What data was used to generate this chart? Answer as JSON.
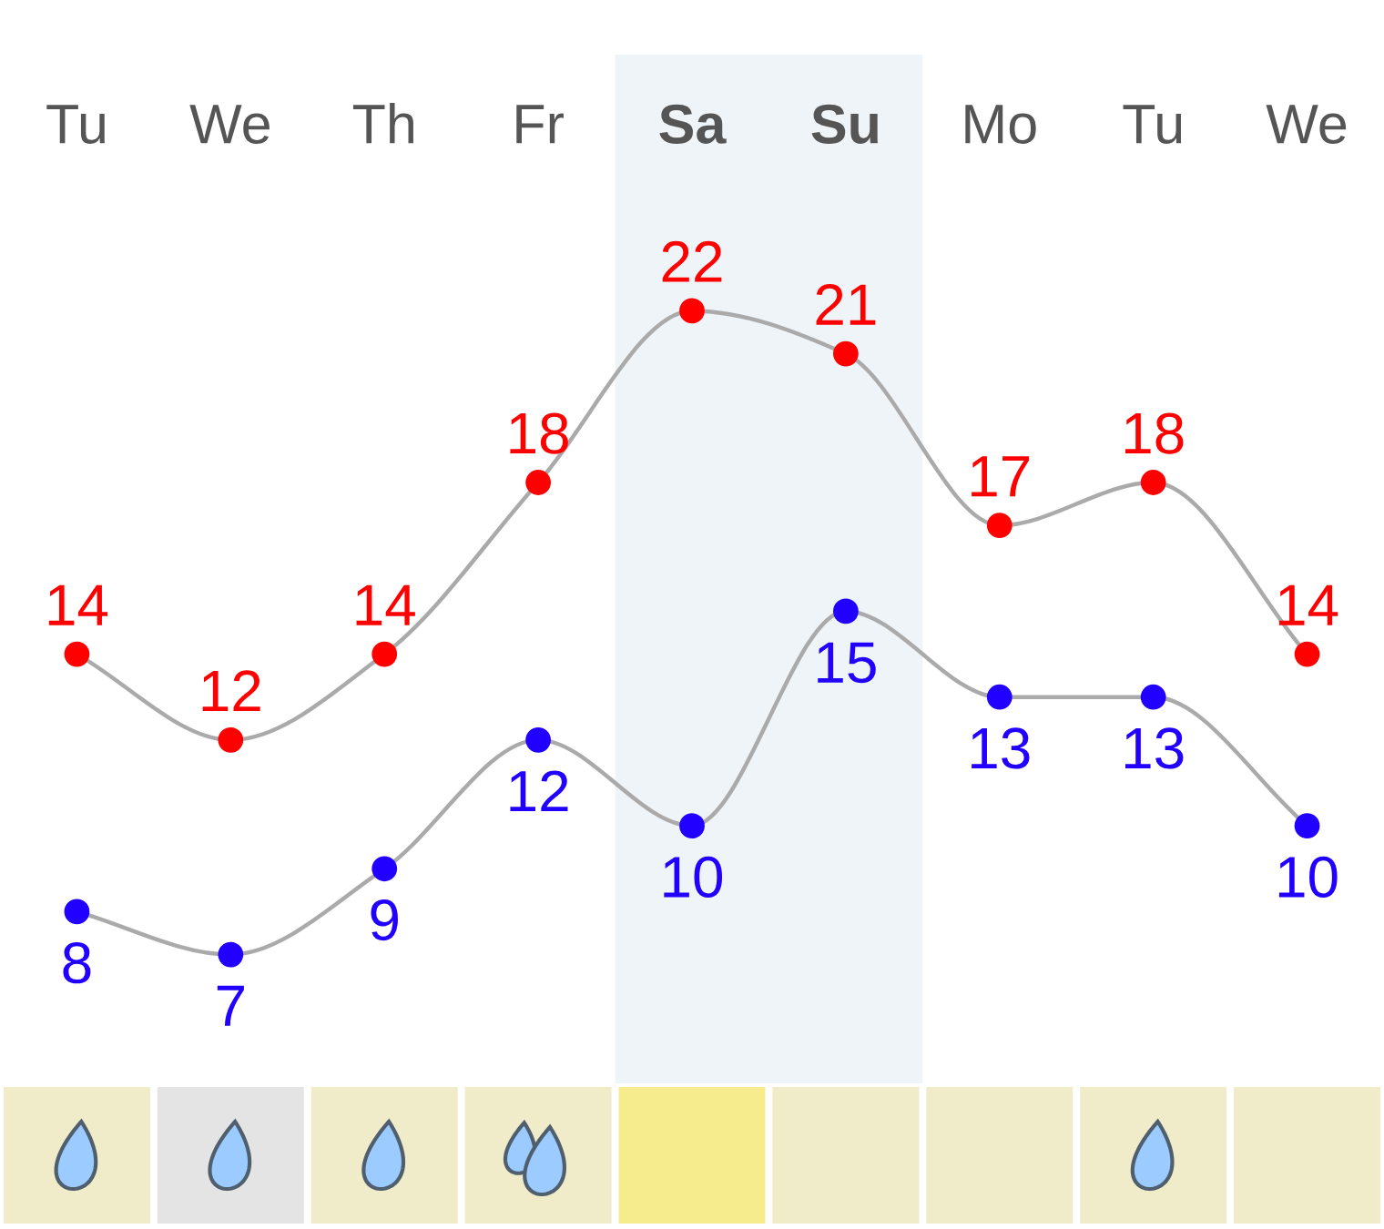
{
  "chart_data": {
    "type": "line",
    "categories": [
      "Tu",
      "We",
      "Th",
      "Fr",
      "Sa",
      "Su",
      "Mo",
      "Tu",
      "We"
    ],
    "series": [
      {
        "color": "#ff0000",
        "values": [
          14,
          12,
          14,
          18,
          22,
          21,
          17,
          18,
          14
        ]
      },
      {
        "color": "#2200ff",
        "values": [
          8,
          7,
          9,
          12,
          10,
          15,
          13,
          13,
          10
        ]
      }
    ],
    "tick_labels": "x",
    "data_labels": true,
    "marker": "circle",
    "line_style": "solid",
    "bands": [
      {
        "axis": "x",
        "from": "Sa",
        "to": "Su",
        "color": "#eff4f8"
      }
    ]
  }
}
